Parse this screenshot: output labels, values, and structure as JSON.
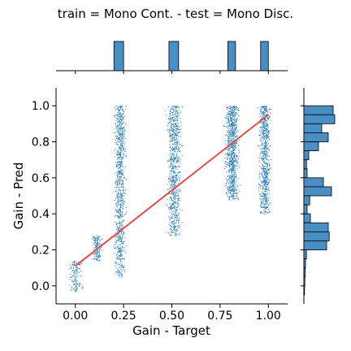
{
  "chart_data": {
    "type": "scatter",
    "title": "train = Mono Cont. - test = Mono Disc.",
    "xlabel": "Gain - Target",
    "ylabel": "Gain - Pred",
    "xlim": [
      -0.1,
      1.1
    ],
    "ylim": [
      -0.1,
      1.1
    ],
    "x_ticks": [
      "0.00",
      "0.25",
      "0.50",
      "0.75",
      "1.00"
    ],
    "y_ticks": [
      "0.0",
      "0.2",
      "0.4",
      "0.6",
      "0.8",
      "1.0"
    ],
    "point_color": "#1f77b4",
    "hist_color": "#4a8fc4",
    "line_color": "#e24a4a",
    "fit_line": {
      "x": [
        0.0,
        1.0
      ],
      "y": [
        0.11,
        0.95
      ]
    },
    "clusters": [
      {
        "x_center": 0.0,
        "x_spread": 0.03,
        "y_range": [
          -0.03,
          0.14
        ],
        "density": 140
      },
      {
        "x_center": 0.11,
        "x_spread": 0.02,
        "y_range": [
          0.14,
          0.28
        ],
        "density": 150
      },
      {
        "x_center": 0.23,
        "x_spread": 0.025,
        "y_range": [
          0.05,
          1.0
        ],
        "density": 950
      },
      {
        "x_center": 0.51,
        "x_spread": 0.03,
        "y_range": [
          0.28,
          1.0
        ],
        "density": 850
      },
      {
        "x_center": 0.81,
        "x_spread": 0.03,
        "y_range": [
          0.48,
          1.0
        ],
        "density": 900
      },
      {
        "x_center": 0.98,
        "x_spread": 0.025,
        "y_range": [
          0.4,
          1.0
        ],
        "density": 800
      }
    ],
    "top_hist": {
      "bin_edges": [
        0.2,
        0.25,
        0.485,
        0.535,
        0.79,
        0.83,
        0.96,
        1.0
      ],
      "bars": [
        {
          "x0": 0.2,
          "x1": 0.25,
          "value": 1
        },
        {
          "x0": 0.485,
          "x1": 0.535,
          "value": 1
        },
        {
          "x0": 0.79,
          "x1": 0.83,
          "value": 1
        },
        {
          "x0": 0.96,
          "x1": 1.0,
          "value": 1
        }
      ]
    },
    "right_hist": {
      "bins": [
        {
          "y0": 0.95,
          "y1": 1.0,
          "value": 0.9
        },
        {
          "y0": 0.9,
          "y1": 0.95,
          "value": 0.95
        },
        {
          "y0": 0.85,
          "y1": 0.9,
          "value": 0.55
        },
        {
          "y0": 0.8,
          "y1": 0.85,
          "value": 0.75
        },
        {
          "y0": 0.75,
          "y1": 0.8,
          "value": 0.45
        },
        {
          "y0": 0.7,
          "y1": 0.75,
          "value": 0.15
        },
        {
          "y0": 0.65,
          "y1": 0.7,
          "value": 0.08
        },
        {
          "y0": 0.6,
          "y1": 0.65,
          "value": 0.1
        },
        {
          "y0": 0.55,
          "y1": 0.6,
          "value": 0.6
        },
        {
          "y0": 0.5,
          "y1": 0.55,
          "value": 0.85
        },
        {
          "y0": 0.45,
          "y1": 0.5,
          "value": 0.18
        },
        {
          "y0": 0.4,
          "y1": 0.45,
          "value": 0.1
        },
        {
          "y0": 0.35,
          "y1": 0.4,
          "value": 0.2
        },
        {
          "y0": 0.3,
          "y1": 0.35,
          "value": 0.75
        },
        {
          "y0": 0.25,
          "y1": 0.3,
          "value": 0.78
        },
        {
          "y0": 0.2,
          "y1": 0.25,
          "value": 0.7
        },
        {
          "y0": 0.15,
          "y1": 0.2,
          "value": 0.08
        },
        {
          "y0": 0.1,
          "y1": 0.15,
          "value": 0.05
        },
        {
          "y0": 0.05,
          "y1": 0.1,
          "value": 0.04
        },
        {
          "y0": 0.0,
          "y1": 0.05,
          "value": 0.03
        },
        {
          "y0": -0.05,
          "y1": 0.0,
          "value": 0.02
        }
      ]
    }
  }
}
